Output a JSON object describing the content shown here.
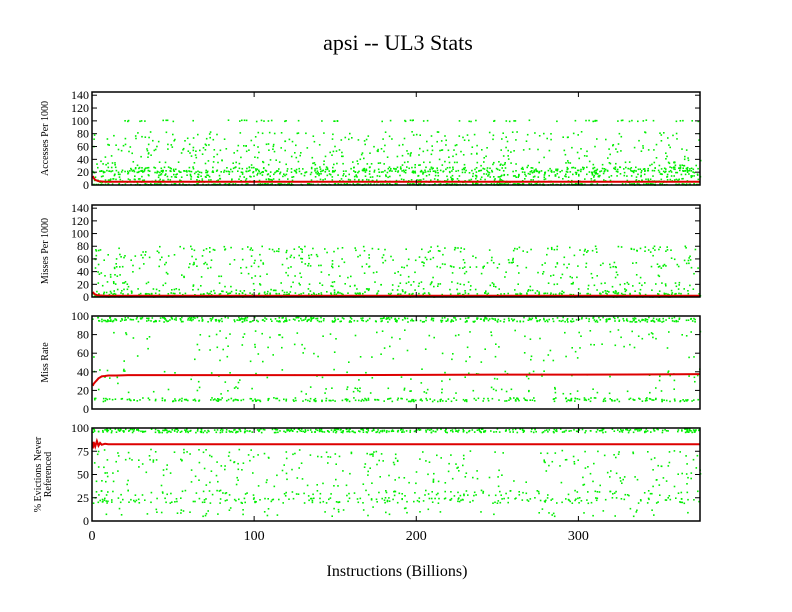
{
  "chart_data": {
    "type": "scatter",
    "title": "apsi -- UL3  Stats",
    "xlabel": "Instructions (Billions)",
    "xlim": [
      0,
      375
    ],
    "xticks": [
      0,
      100,
      200,
      300
    ],
    "colors": {
      "points": "#00ee00",
      "line": "#dd0000",
      "axes": "#000000"
    },
    "panels": [
      {
        "ylabel": [
          "Accesses Per 1000"
        ],
        "ylim": [
          0,
          145
        ],
        "yticks": [
          0,
          20,
          40,
          60,
          80,
          100,
          120,
          140
        ],
        "bands": [
          {
            "y": 1,
            "spread": 1,
            "density": 1.8
          },
          {
            "y": 7,
            "spread": 3,
            "density": 1.2
          },
          {
            "y": 15,
            "spread": 3,
            "density": 1.0
          },
          {
            "y": 21,
            "spread": 2,
            "density": 1.5
          },
          {
            "y": 26,
            "spread": 2,
            "density": 0.9
          },
          {
            "y": 33,
            "spread": 3,
            "density": 0.4
          },
          {
            "y": 45,
            "spread": 10,
            "density": 0.6
          },
          {
            "y": 58,
            "spread": 6,
            "density": 0.5
          },
          {
            "y": 75,
            "spread": 8,
            "density": 0.6
          },
          {
            "y": 100,
            "spread": 1,
            "density": 0.35
          }
        ],
        "series": [
          {
            "x": [
              0.5,
              1,
              2,
              3,
              4,
              6,
              8,
              10,
              15,
              20,
              30,
              50,
              100,
              150,
              200,
              250,
              300,
              350,
              375
            ],
            "y": [
              14,
              11,
              8,
              7,
              6,
              5.5,
              5,
              5,
              5,
              5,
              5,
              5,
              5,
              5,
              5,
              5,
              5,
              5,
              5
            ]
          }
        ]
      },
      {
        "ylabel": [
          "Misses Per 1000"
        ],
        "ylim": [
          0,
          145
        ],
        "yticks": [
          0,
          20,
          40,
          60,
          80,
          100,
          120,
          140
        ],
        "bands": [
          {
            "y": 1,
            "spread": 1,
            "density": 1.6
          },
          {
            "y": 5,
            "spread": 1.5,
            "density": 1.0
          },
          {
            "y": 10,
            "spread": 3,
            "density": 0.5
          },
          {
            "y": 20,
            "spread": 4,
            "density": 0.5
          },
          {
            "y": 35,
            "spread": 5,
            "density": 0.35
          },
          {
            "y": 50,
            "spread": 5,
            "density": 0.6
          },
          {
            "y": 62,
            "spread": 5,
            "density": 0.4
          },
          {
            "y": 75,
            "spread": 5,
            "density": 0.6
          }
        ],
        "series": [
          {
            "x": [
              0.5,
              1,
              2,
              3,
              5,
              8,
              12,
              20,
              50,
              100,
              150,
              200,
              250,
              300,
              350,
              375
            ],
            "y": [
              8,
              6,
              4,
              3,
              2.5,
              2,
              2,
              2,
              2,
              2,
              2,
              2,
              2,
              2,
              2,
              2
            ]
          }
        ]
      },
      {
        "ylabel": [
          "Miss Rate"
        ],
        "ylim": [
          0,
          100
        ],
        "yticks": [
          0,
          20,
          40,
          60,
          80,
          100
        ],
        "bands": [
          {
            "y": 96,
            "spread": 2.5,
            "density": 2.2
          },
          {
            "y": 10,
            "spread": 2,
            "density": 1.4
          },
          {
            "y": 20,
            "spread": 4,
            "density": 0.3
          },
          {
            "y": 35,
            "spread": 8,
            "density": 0.35
          },
          {
            "y": 60,
            "spread": 10,
            "density": 0.35
          },
          {
            "y": 80,
            "spread": 5,
            "density": 0.3
          }
        ],
        "series": [
          {
            "x": [
              0.5,
              1,
              2,
              3,
              4,
              5,
              6,
              8,
              10,
              12,
              15,
              20,
              30,
              50,
              100,
              150,
              200,
              250,
              300,
              350,
              375
            ],
            "y": [
              25,
              27,
              29,
              31,
              33,
              34,
              35,
              35.5,
              36,
              36,
              36,
              36.3,
              36.5,
              36.5,
              36.5,
              36.5,
              36.7,
              37,
              37,
              37.2,
              37.5
            ]
          }
        ]
      },
      {
        "ylabel": [
          "% Evictions Never",
          "Referenced"
        ],
        "ylim": [
          0,
          100
        ],
        "yticks": [
          0,
          25,
          50,
          75,
          100
        ],
        "bands": [
          {
            "y": 97,
            "spread": 2,
            "density": 2.2
          },
          {
            "y": 22,
            "spread": 3,
            "density": 1.0
          },
          {
            "y": 30,
            "spread": 3,
            "density": 0.6
          },
          {
            "y": 45,
            "spread": 8,
            "density": 0.5
          },
          {
            "y": 60,
            "spread": 8,
            "density": 0.5
          },
          {
            "y": 72,
            "spread": 5,
            "density": 0.4
          },
          {
            "y": 10,
            "spread": 5,
            "density": 0.3
          }
        ],
        "series": [
          {
            "x": [
              0.5,
              1,
              2,
              3,
              4,
              5,
              6,
              8,
              10,
              15,
              20,
              30,
              50,
              100,
              150,
              200,
              250,
              300,
              350,
              375
            ],
            "y": [
              78,
              85,
              80,
              86,
              81,
              84,
              82,
              83,
              82.5,
              82.5,
              82.5,
              82.5,
              82.5,
              82.5,
              82.5,
              82.5,
              82.5,
              82.5,
              82.5,
              82.5
            ]
          }
        ]
      }
    ]
  }
}
